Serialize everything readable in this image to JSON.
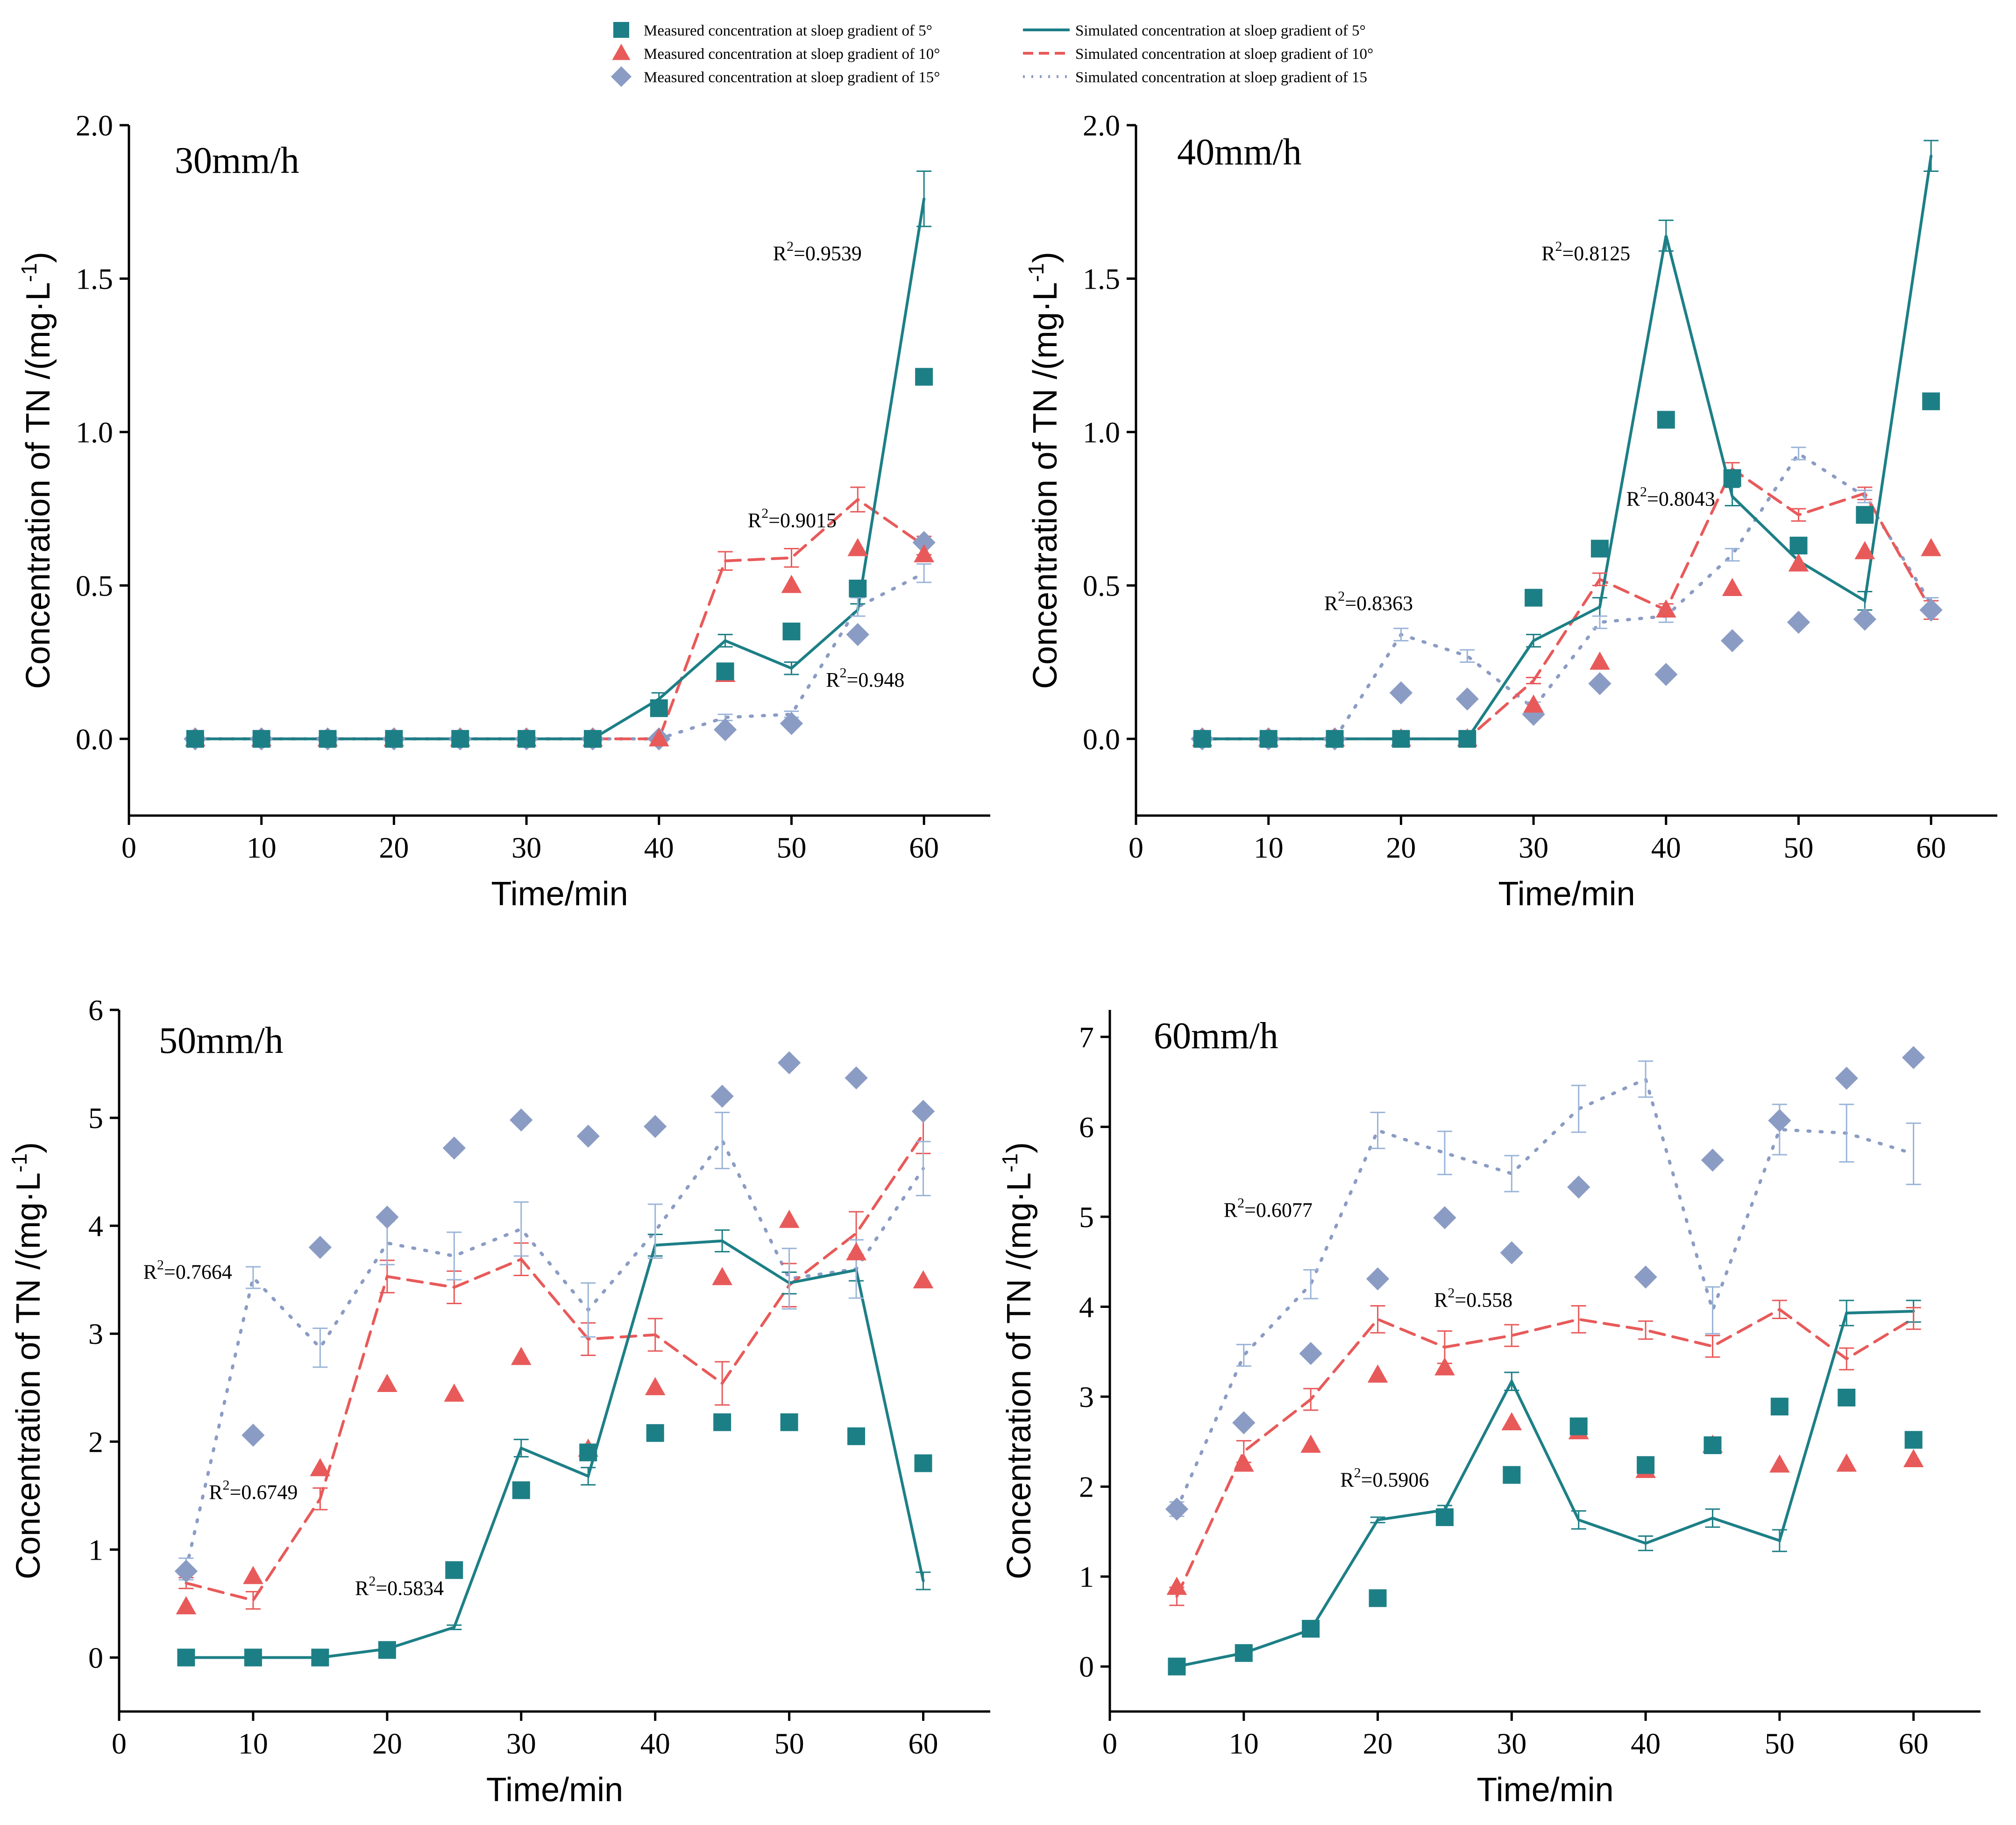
{
  "colors": {
    "s5": "#1d7f86",
    "s10": "#e85a5a",
    "s15": "#8b9cc4",
    "s15err": "#9ab4d8"
  },
  "legend": [
    {
      "kind": "square",
      "series": "s5",
      "style": "measured",
      "label": "Measured concentration at sloep gradient of 5°"
    },
    {
      "kind": "line",
      "series": "s5",
      "style": "solid",
      "label": "Simulated concentration at sloep gradient of 5°"
    },
    {
      "kind": "triangle",
      "series": "s10",
      "style": "measured",
      "label": "Measured concentration at sloep gradient of 10°"
    },
    {
      "kind": "line",
      "series": "s10",
      "style": "dashed",
      "label": "Simulated concentration at sloep gradient of 10°"
    },
    {
      "kind": "diamond",
      "series": "s15",
      "style": "measured",
      "label": "Measured concentration at sloep gradient of 15°"
    },
    {
      "kind": "line",
      "series": "s15",
      "style": "dotted",
      "label": "Simulated concentration at sloep gradient of 15"
    }
  ],
  "chart_data": [
    {
      "type": "scatter",
      "title": "30mm/h",
      "xlabel": "Time/min",
      "ylabel": "Concentration of TN /(mg·L",
      "ylabel_sup": "-1",
      "ylabel_end": ")",
      "xlim": [
        0,
        65
      ],
      "ylim": [
        -0.25,
        2.0
      ],
      "xticks": [
        0,
        10,
        20,
        30,
        40,
        50,
        60
      ],
      "yticks": [
        "0.0",
        "0.5",
        "1.0",
        "1.5",
        "2.0"
      ],
      "x": [
        5,
        10,
        15,
        20,
        25,
        30,
        35,
        40,
        45,
        50,
        55,
        60
      ],
      "measured": {
        "s5": [
          0,
          0,
          0,
          0,
          0,
          0,
          0,
          0.1,
          0.22,
          0.35,
          0.49,
          1.18
        ],
        "s10": [
          0,
          0,
          0,
          0,
          0,
          0,
          0,
          0,
          0.21,
          0.5,
          0.62,
          0.6
        ],
        "s15": [
          0,
          0,
          0,
          0,
          0,
          0,
          0,
          0,
          0.03,
          0.05,
          0.34,
          0.64
        ]
      },
      "simulated": {
        "s5": [
          0,
          0,
          0,
          0,
          0,
          0,
          0,
          0.13,
          0.32,
          0.23,
          0.42,
          1.76
        ],
        "s10": [
          0,
          0,
          0,
          0,
          0,
          0,
          0,
          0,
          0.58,
          0.59,
          0.78,
          0.63
        ],
        "s15": [
          0,
          0,
          0,
          0,
          0,
          0,
          0,
          0,
          0.07,
          0.08,
          0.43,
          0.54
        ]
      },
      "errors": {
        "s5": [
          0,
          0,
          0,
          0,
          0,
          0,
          0,
          0.02,
          0.02,
          0.02,
          0.02,
          0.09
        ],
        "s10": [
          0,
          0,
          0,
          0,
          0,
          0,
          0,
          0,
          0.03,
          0.03,
          0.04,
          0.03
        ],
        "s15": [
          0,
          0,
          0,
          0,
          0,
          0,
          0,
          0,
          0.01,
          0.01,
          0.03,
          0.03
        ]
      },
      "annotations": [
        {
          "text": "0.9539",
          "x": 48.6,
          "y": 1.56
        },
        {
          "text": "0.9015",
          "x": 46.7,
          "y": 0.69
        },
        {
          "text": "0.948",
          "x": 52.6,
          "y": 0.17
        }
      ]
    },
    {
      "type": "scatter",
      "title": "40mm/h",
      "xlabel": "Time/min",
      "ylabel": "Concentration of TN /(mg·L",
      "ylabel_sup": "-1",
      "ylabel_end": ")",
      "xlim": [
        0,
        65
      ],
      "ylim": [
        -0.25,
        2.0
      ],
      "xticks": [
        0,
        10,
        20,
        30,
        40,
        50,
        60
      ],
      "yticks": [
        "0.0",
        "0.5",
        "1.0",
        "1.5",
        "2.0"
      ],
      "x": [
        5,
        10,
        15,
        20,
        25,
        30,
        35,
        40,
        45,
        50,
        55,
        60
      ],
      "measured": {
        "s5": [
          0,
          0,
          0,
          0,
          0,
          0.46,
          0.62,
          1.04,
          0.85,
          0.63,
          0.73,
          1.1
        ],
        "s10": [
          0,
          0,
          0,
          0,
          0,
          0.11,
          0.25,
          0.42,
          0.49,
          0.57,
          0.61,
          0.62
        ],
        "s15": [
          0,
          0,
          0,
          0.15,
          0.13,
          0.08,
          0.18,
          0.21,
          0.32,
          0.38,
          0.39,
          0.42
        ]
      },
      "simulated": {
        "s5": [
          0,
          0,
          0,
          0,
          0,
          0.32,
          0.43,
          1.64,
          0.79,
          0.58,
          0.45,
          1.9
        ],
        "s10": [
          0,
          0,
          0,
          0,
          0,
          0.19,
          0.52,
          0.42,
          0.88,
          0.73,
          0.8,
          0.42
        ],
        "s15": [
          0,
          0,
          0,
          0.34,
          0.27,
          0.1,
          0.38,
          0.4,
          0.6,
          0.93,
          0.79,
          0.44
        ]
      },
      "errors": {
        "s5": [
          0,
          0,
          0,
          0,
          0,
          0.02,
          0.03,
          0.05,
          0.03,
          0.03,
          0.03,
          0.05
        ],
        "s10": [
          0,
          0,
          0,
          0,
          0,
          0.01,
          0.02,
          0.02,
          0.02,
          0.02,
          0.02,
          0.03
        ],
        "s15": [
          0,
          0,
          0,
          0.02,
          0.02,
          0.02,
          0.02,
          0.02,
          0.02,
          0.02,
          0.02,
          0.02
        ]
      },
      "annotations": [
        {
          "text": "0.8125",
          "x": 30.6,
          "y": 1.56
        },
        {
          "text": "0.8043",
          "x": 37.0,
          "y": 0.76
        },
        {
          "text": "0.8363",
          "x": 14.2,
          "y": 0.42
        }
      ]
    },
    {
      "type": "scatter",
      "title": "50mm/h",
      "xlabel": "Time/min",
      "ylabel": "Concentration of TN /(mg·L",
      "ylabel_sup": "-1",
      "ylabel_end": ")",
      "xlim": [
        0,
        65
      ],
      "ylim": [
        -0.5,
        6.0
      ],
      "xticks": [
        0,
        10,
        20,
        30,
        40,
        50,
        60
      ],
      "yticks": [
        "0",
        "1",
        "2",
        "3",
        "4",
        "5",
        "6"
      ],
      "x": [
        5,
        10,
        15,
        20,
        25,
        30,
        35,
        40,
        45,
        50,
        55,
        60
      ],
      "measured": {
        "s5": [
          0,
          0,
          0,
          0.07,
          0.81,
          1.55,
          1.9,
          2.08,
          2.18,
          2.18,
          2.05,
          1.8
        ],
        "s10": [
          0.47,
          0.75,
          1.75,
          2.53,
          2.44,
          2.78,
          1.93,
          2.5,
          3.52,
          4.05,
          3.75,
          3.49
        ],
        "s15": [
          0.8,
          2.06,
          3.8,
          4.08,
          4.72,
          4.98,
          4.83,
          4.92,
          5.2,
          5.51,
          5.37,
          5.06
        ]
      },
      "simulated": {
        "s5": [
          0,
          0,
          0,
          0.08,
          0.28,
          1.94,
          1.68,
          3.82,
          3.86,
          3.47,
          3.59,
          0.71
        ],
        "s10": [
          0.69,
          0.53,
          1.47,
          3.53,
          3.43,
          3.69,
          2.95,
          2.99,
          2.54,
          3.45,
          3.93,
          4.85
        ],
        "s15": [
          0.82,
          3.52,
          2.87,
          3.84,
          3.72,
          3.97,
          3.22,
          3.95,
          4.79,
          3.51,
          3.6,
          4.53
        ]
      },
      "errors": {
        "s5": [
          0,
          0,
          0,
          0.02,
          0.02,
          0.08,
          0.08,
          0.1,
          0.1,
          0.1,
          0.1,
          0.08
        ],
        "s10": [
          0.05,
          0.08,
          0.1,
          0.15,
          0.15,
          0.15,
          0.15,
          0.15,
          0.2,
          0.2,
          0.2,
          0.18
        ],
        "s15": [
          0.1,
          0.1,
          0.18,
          0.2,
          0.22,
          0.25,
          0.25,
          0.25,
          0.26,
          0.28,
          0.27,
          0.25
        ]
      },
      "annotations": [
        {
          "text": "0.7664",
          "x": 1.8,
          "y": 3.51
        },
        {
          "text": "0.6749",
          "x": 6.7,
          "y": 1.47
        },
        {
          "text": "0.5834",
          "x": 17.6,
          "y": 0.58
        }
      ]
    },
    {
      "type": "scatter",
      "title": "60mm/h",
      "xlabel": "Time/min",
      "ylabel": "Concentration of TN /(mg·L",
      "ylabel_sup": "-1",
      "ylabel_end": ")",
      "xlim": [
        0,
        65
      ],
      "ylim": [
        -0.5,
        7.3
      ],
      "xticks": [
        0,
        10,
        20,
        30,
        40,
        50,
        60
      ],
      "yticks": [
        "0",
        "1",
        "2",
        "3",
        "4",
        "5",
        "6",
        "7"
      ],
      "x": [
        5,
        10,
        15,
        20,
        25,
        30,
        35,
        40,
        45,
        50,
        55,
        60
      ],
      "measured": {
        "s5": [
          0,
          0.15,
          0.42,
          0.76,
          1.66,
          2.13,
          2.67,
          2.24,
          2.46,
          2.89,
          2.99,
          2.52
        ],
        "s10": [
          0.88,
          2.25,
          2.46,
          3.24,
          3.32,
          2.71,
          2.61,
          2.18,
          2.46,
          2.24,
          2.25,
          2.3
        ],
        "s15": [
          1.75,
          2.71,
          3.48,
          4.31,
          4.99,
          4.6,
          5.33,
          4.33,
          5.63,
          6.07,
          6.54,
          6.77
        ]
      },
      "simulated": {
        "s5": [
          0,
          0.15,
          0.41,
          1.63,
          1.74,
          3.17,
          1.63,
          1.37,
          1.65,
          1.4,
          3.93,
          3.95
        ],
        "s10": [
          0.78,
          2.39,
          2.97,
          3.86,
          3.55,
          3.68,
          3.86,
          3.74,
          3.56,
          3.97,
          3.42,
          3.87
        ],
        "s15": [
          1.75,
          3.46,
          4.25,
          5.96,
          5.71,
          5.48,
          6.2,
          6.53,
          3.96,
          5.97,
          5.93,
          5.7
        ]
      },
      "errors": {
        "s5": [
          0,
          0.02,
          0.03,
          0.03,
          0.05,
          0.1,
          0.1,
          0.08,
          0.1,
          0.12,
          0.14,
          0.12
        ],
        "s10": [
          0.1,
          0.12,
          0.12,
          0.15,
          0.18,
          0.12,
          0.15,
          0.1,
          0.12,
          0.1,
          0.12,
          0.12
        ],
        "s15": [
          0.08,
          0.12,
          0.16,
          0.2,
          0.24,
          0.2,
          0.26,
          0.2,
          0.26,
          0.28,
          0.32,
          0.34
        ]
      },
      "annotations": [
        {
          "text": "0.6077",
          "x": 8.5,
          "y": 5.0
        },
        {
          "text": "0.558",
          "x": 24.2,
          "y": 4.0
        },
        {
          "text": "0.5906",
          "x": 17.2,
          "y": 2.0
        }
      ]
    }
  ]
}
